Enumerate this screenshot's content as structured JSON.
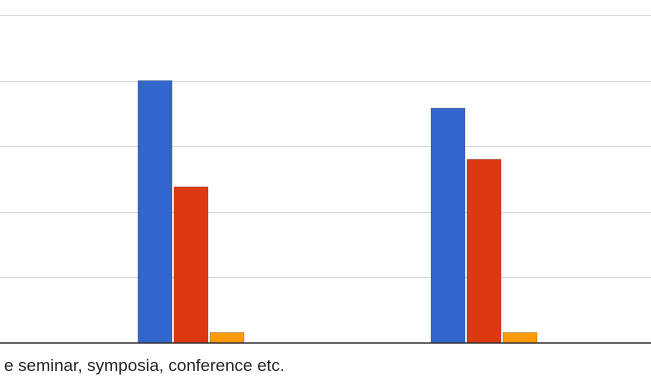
{
  "chart_data": {
    "type": "bar",
    "categories": [
      "e seminar, symposia, conference etc.",
      ""
    ],
    "series": [
      {
        "values": [
          4,
          3.58
        ],
        "color": "#3366cc"
      },
      {
        "values": [
          2.38,
          2.8
        ],
        "color": "#dc3912"
      },
      {
        "values": [
          0.16,
          0.16
        ],
        "color": "#ff9900"
      },
      {
        "values": [
          0,
          0
        ],
        "color": "#990099"
      }
    ],
    "ylim": [
      0,
      5
    ],
    "grid": true,
    "legend": "none"
  }
}
